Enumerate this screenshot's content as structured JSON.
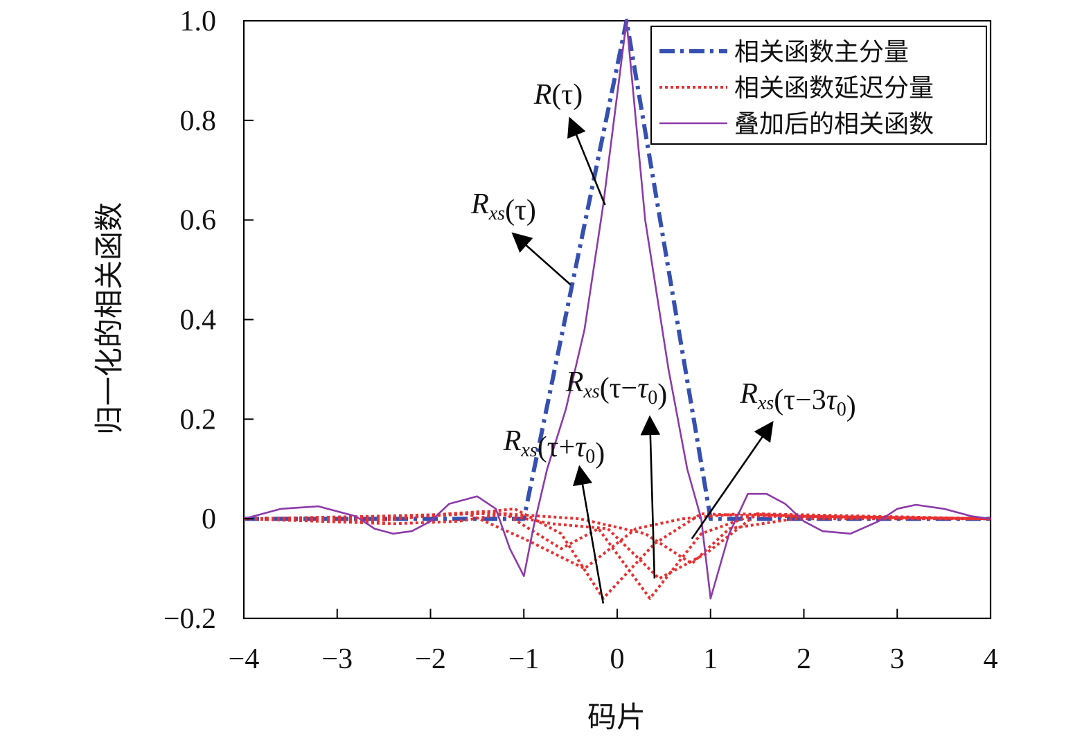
{
  "chart_data": {
    "type": "line",
    "xlabel": "码片",
    "ylabel": "归一化的相关函数",
    "xlim": [
      -4,
      4
    ],
    "ylim": [
      -0.2,
      1.0
    ],
    "xticks": [
      -4,
      -3,
      -2,
      -1,
      0,
      1,
      2,
      3,
      4
    ],
    "xtick_labels": [
      "−4",
      "−3",
      "−2",
      "−1",
      "0",
      "1",
      "2",
      "3",
      "4"
    ],
    "yticks": [
      -0.2,
      0,
      0.2,
      0.4,
      0.6,
      0.8,
      1.0
    ],
    "ytick_labels": [
      "−0.2",
      "0",
      "0.2",
      "0.4",
      "0.6",
      "0.8",
      "1.0"
    ],
    "grid": false,
    "legend_position": "top-right",
    "series": [
      {
        "name": "相关函数主分量",
        "style": "dash-dot",
        "color": "#3550b0",
        "x": [
          -4,
          -1,
          0.1,
          1,
          4
        ],
        "y": [
          0,
          0,
          1.0,
          0,
          0
        ]
      },
      {
        "name": "相关函数延迟分量",
        "style": "dotted",
        "color": "#e83030",
        "components": [
          {
            "x": [
              -4,
              -2.6,
              -1.6,
              -1.1,
              -0.6,
              -0.15,
              0.4,
              0.9,
              1.6,
              4
            ],
            "y": [
              0,
              0.005,
              0.01,
              0.02,
              -0.03,
              -0.16,
              -0.05,
              0.01,
              0.005,
              0
            ]
          },
          {
            "x": [
              -4,
              -2.4,
              -1.7,
              -1.2,
              -0.6,
              -0.2,
              0.35,
              0.9,
              1.5,
              4
            ],
            "y": [
              0,
              -0.01,
              -0.005,
              0.01,
              -0.06,
              -0.02,
              -0.16,
              -0.03,
              0.01,
              0
            ]
          },
          {
            "x": [
              -4,
              -2.5,
              -1.6,
              -1.0,
              -0.35,
              0.2,
              0.7,
              1.3,
              2.0,
              4
            ],
            "y": [
              0,
              0.0,
              0.01,
              -0.04,
              -0.1,
              -0.02,
              0.0,
              0.01,
              0.005,
              0
            ]
          },
          {
            "x": [
              -4,
              -2.2,
              -1.4,
              -0.7,
              -0.1,
              0.45,
              0.95,
              1.5,
              2.1,
              4
            ],
            "y": [
              0,
              0.005,
              0.015,
              -0.01,
              -0.02,
              -0.12,
              -0.07,
              0.01,
              0.005,
              0
            ]
          },
          {
            "x": [
              -4,
              -2.6,
              -1.8,
              -1.2,
              -0.4,
              0.3,
              0.8,
              1.2,
              1.9,
              4
            ],
            "y": [
              0,
              -0.005,
              0.01,
              0.01,
              0.0,
              -0.03,
              -0.09,
              -0.02,
              0.0,
              0
            ]
          }
        ]
      },
      {
        "name": "叠加后的相关函数",
        "style": "solid",
        "color": "#8c3aa8",
        "x": [
          -4,
          -3.6,
          -3.2,
          -2.8,
          -2.6,
          -2.4,
          -2.2,
          -2.0,
          -1.8,
          -1.5,
          -1.3,
          -1.15,
          -1.0,
          -0.9,
          -0.75,
          -0.55,
          -0.35,
          -0.15,
          0.1,
          0.3,
          0.55,
          0.75,
          0.9,
          1.0,
          1.2,
          1.4,
          1.6,
          1.8,
          2.0,
          2.2,
          2.5,
          2.8,
          3.0,
          3.2,
          3.5,
          3.8,
          4.0
        ],
        "y": [
          0,
          0.02,
          0.025,
          0.005,
          -0.02,
          -0.03,
          -0.025,
          -0.005,
          0.03,
          0.045,
          0.02,
          -0.06,
          -0.115,
          -0.02,
          0.1,
          0.22,
          0.38,
          0.63,
          1.0,
          0.6,
          0.3,
          0.1,
          0.0,
          -0.16,
          -0.03,
          0.05,
          0.05,
          0.03,
          -0.005,
          -0.025,
          -0.03,
          -0.005,
          0.02,
          0.028,
          0.02,
          0.005,
          0
        ]
      }
    ],
    "annotations": [
      {
        "text": "R(τ)",
        "tip": [
          -0.5,
          0.8
        ],
        "tail": [
          -0.13,
          0.63
        ]
      },
      {
        "text": "Rxs(τ)",
        "tip": [
          -1.1,
          0.57
        ],
        "tail": [
          -0.5,
          0.47
        ]
      },
      {
        "text": "Rxs(τ−τ0)",
        "tip": [
          0.35,
          0.2
        ],
        "tail": [
          0.4,
          -0.12
        ]
      },
      {
        "text": "Rxs(τ+τ0)",
        "tip": [
          -0.4,
          0.1
        ],
        "tail": [
          -0.15,
          -0.17
        ]
      },
      {
        "text": "Rxs(τ−3τ0)",
        "tip": [
          1.65,
          0.19
        ],
        "tail": [
          0.8,
          -0.04
        ]
      }
    ]
  },
  "legend": {
    "items": [
      {
        "label": "相关函数主分量",
        "color": "#3550b0",
        "style": "dash-dot"
      },
      {
        "label": "相关函数延迟分量",
        "color": "#e83030",
        "style": "dotted"
      },
      {
        "label": "叠加后的相关函数",
        "color": "#8c3aa8",
        "style": "solid"
      }
    ]
  }
}
